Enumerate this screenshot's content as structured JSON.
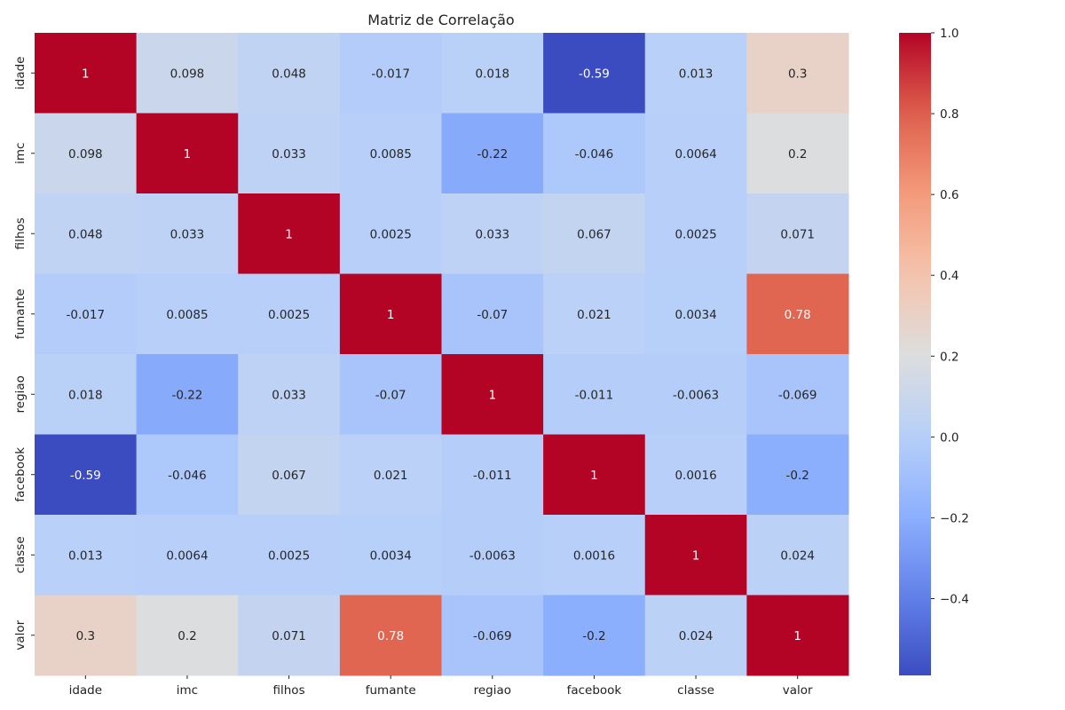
{
  "chart_data": {
    "type": "heatmap",
    "title": "Matriz de Correlação",
    "colormap": "coolwarm",
    "x_categories": [
      "idade",
      "imc",
      "filhos",
      "fumante",
      "regiao",
      "facebook",
      "classe",
      "valor"
    ],
    "y_categories": [
      "idade",
      "imc",
      "filhos",
      "fumante",
      "regiao",
      "facebook",
      "classe",
      "valor"
    ],
    "values": [
      [
        1,
        0.098,
        0.048,
        -0.017,
        0.018,
        -0.59,
        0.013,
        0.3
      ],
      [
        0.098,
        1,
        0.033,
        0.0085,
        -0.22,
        -0.046,
        0.0064,
        0.2
      ],
      [
        0.048,
        0.033,
        1,
        0.0025,
        0.033,
        0.067,
        0.0025,
        0.071
      ],
      [
        -0.017,
        0.0085,
        0.0025,
        1,
        -0.07,
        0.021,
        0.0034,
        0.78
      ],
      [
        0.018,
        -0.22,
        0.033,
        -0.07,
        1,
        -0.011,
        -0.0063,
        -0.069
      ],
      [
        -0.59,
        -0.046,
        0.067,
        0.021,
        -0.011,
        1,
        0.0016,
        -0.2
      ],
      [
        0.013,
        0.0064,
        0.0025,
        0.0034,
        -0.0063,
        0.0016,
        1,
        0.024
      ],
      [
        0.3,
        0.2,
        0.071,
        0.78,
        -0.069,
        -0.2,
        0.024,
        1
      ]
    ],
    "vmin": -0.59,
    "vmax": 1.0,
    "colorbar_ticks": [
      1.0,
      0.8,
      0.6,
      0.4,
      0.2,
      0.0,
      -0.2,
      -0.4
    ],
    "colorbar_tick_labels": [
      "1.0",
      "0.8",
      "0.6",
      "0.4",
      "0.2",
      "0.0",
      "−0.2",
      "−0.4"
    ],
    "annotations": true,
    "grid": false
  }
}
